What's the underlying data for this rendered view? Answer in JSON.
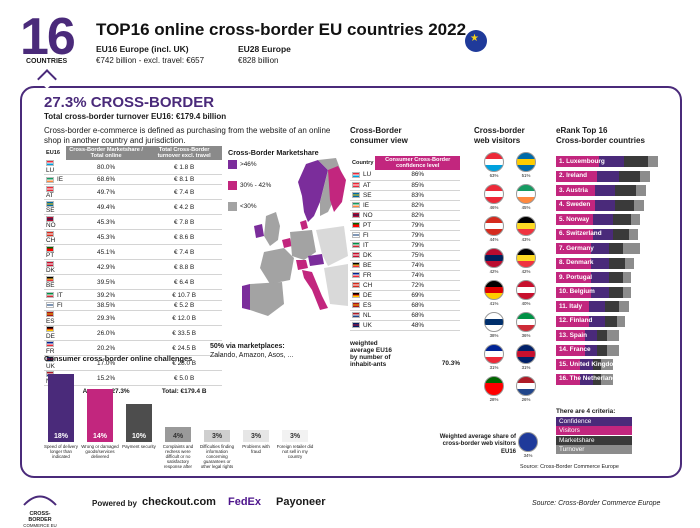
{
  "header": {
    "big_number": "16",
    "big_label": "COUNTRIES",
    "title": "TOP16 online cross-border EU countries 2022",
    "eu16_title": "EU16 Europe (incl. UK)",
    "eu16_value": "€742 billion - excl. travel: €657",
    "eu28_title": "EU28 Europe",
    "eu28_value": "€828 billion"
  },
  "crossborder": {
    "title": "27.3% CROSS-BORDER",
    "subtitle": "Total cross-border turnover EU16: €179.4 billion",
    "description": "Cross-border e-commerce is defined as purchasing from the website of an online shop in another country and jurisdiction."
  },
  "left_table": {
    "col0": "EU16",
    "col1": "Cross-Border Marketshare / Total online",
    "col2": "Total Cross-Border turnover excl. travel",
    "rows": [
      {
        "code": "LU",
        "share": "80.0%",
        "turnover": "€ 1.8 B"
      },
      {
        "code": "IE",
        "share": "68.6%",
        "turnover": "€ 8.1 B"
      },
      {
        "code": "AT",
        "share": "49.7%",
        "turnover": "€ 7.4 B"
      },
      {
        "code": "SE",
        "share": "49.4%",
        "turnover": "€ 4.2 B"
      },
      {
        "code": "NO",
        "share": "45.3%",
        "turnover": "€ 7.8 B"
      },
      {
        "code": "CH",
        "share": "45.3%",
        "turnover": "€ 8.6 B"
      },
      {
        "code": "PT",
        "share": "45.1%",
        "turnover": "€ 7.4 B"
      },
      {
        "code": "DK",
        "share": "42.9%",
        "turnover": "€ 8.8 B"
      },
      {
        "code": "BE",
        "share": "39.5%",
        "turnover": "€ 6.4 B"
      },
      {
        "code": "IT",
        "share": "39.2%",
        "turnover": "€ 10.7 B"
      },
      {
        "code": "FI",
        "share": "38.5%",
        "turnover": "€ 5.2 B"
      },
      {
        "code": "ES",
        "share": "29.3%",
        "turnover": "€ 12.0 B"
      },
      {
        "code": "DE",
        "share": "26.0%",
        "turnover": "€ 33.5 B"
      },
      {
        "code": "FR",
        "share": "20.2%",
        "turnover": "€ 24.5 B"
      },
      {
        "code": "UK",
        "share": "17.0%",
        "turnover": "€ 28.0 B"
      },
      {
        "code": "NL",
        "share": "15.2%",
        "turnover": "€ 5.0 B"
      }
    ],
    "footer_avg": "Average: 27.3%",
    "footer_total": "Total: €179.4 B"
  },
  "map_legend": {
    "title": "Cross-Border Marketshare",
    "items": [
      {
        "label": ">46%",
        "color": "#7b2d9b"
      },
      {
        "label": "30% - 42%",
        "color": "#c2267e"
      },
      {
        "label": "<30%",
        "color": "#a3a3a3"
      }
    ],
    "marketplace_line1": "50% via marketplaces:",
    "marketplace_line2": "Zalando, Amazon, Asos, ..."
  },
  "challenges": {
    "title": "Consumer cross-border online challenges",
    "items": [
      {
        "value": "18%",
        "pct": 18,
        "color": "#4a2a7a",
        "label": "Speed of delivery longer than indicated"
      },
      {
        "value": "14%",
        "pct": 14,
        "color": "#c2267e",
        "label": "Wrong or damaged goods/services delivered"
      },
      {
        "value": "10%",
        "pct": 10,
        "color": "#4d4d4d",
        "label": "Payment security"
      },
      {
        "value": "4%",
        "pct": 4,
        "color": "#9a9a9a",
        "label": "Complaints and redress were difficult or no satisfactory response after"
      },
      {
        "value": "3%",
        "pct": 3,
        "color": "#cfcfcf",
        "label": "Difficulties finding information concerning guarantees or other legal rights"
      },
      {
        "value": "3%",
        "pct": 3,
        "color": "#e6e6e6",
        "label": "Problems with fraud"
      },
      {
        "value": "3%",
        "pct": 3,
        "color": "#f2f2f2",
        "label": "Foreign retailer did not sell in my country"
      }
    ]
  },
  "consumer_view": {
    "title_line1": "Cross-Border",
    "title_line2": "consumer view",
    "col0": "Country",
    "col1": "Consumer Cross-Border confidence level",
    "rows": [
      {
        "code": "LU",
        "value": "86%"
      },
      {
        "code": "AT",
        "value": "85%"
      },
      {
        "code": "SE",
        "value": "83%"
      },
      {
        "code": "IE",
        "value": "82%"
      },
      {
        "code": "NO",
        "value": "82%"
      },
      {
        "code": "PT",
        "value": "79%"
      },
      {
        "code": "FI",
        "value": "79%"
      },
      {
        "code": "IT",
        "value": "79%"
      },
      {
        "code": "DK",
        "value": "75%"
      },
      {
        "code": "BE",
        "value": "74%"
      },
      {
        "code": "FR",
        "value": "74%"
      },
      {
        "code": "CH",
        "value": "72%"
      },
      {
        "code": "DE",
        "value": "69%"
      },
      {
        "code": "ES",
        "value": "68%"
      },
      {
        "code": "NL",
        "value": "68%"
      },
      {
        "code": "UK",
        "value": "48%"
      }
    ],
    "wavg_label": "weighted average EU16 by number of inhabit-ants",
    "wavg_value": "70.3%"
  },
  "web_visitors": {
    "title_line1": "Cross-border",
    "title_line2": "web visitors",
    "note": "Weighted average share of cross-border web visitors EU16",
    "avg_value": "34%",
    "flags": [
      {
        "code": "LU",
        "value": "63%",
        "colors": [
          "#ed2939",
          "#ffffff",
          "#00a1de"
        ]
      },
      {
        "code": "SE",
        "value": "51%",
        "colors": [
          "#006aa7",
          "#fecc00",
          "#006aa7"
        ]
      },
      {
        "code": "AT",
        "value": "46%",
        "colors": [
          "#ed2939",
          "#ffffff",
          "#ed2939"
        ]
      },
      {
        "code": "IE",
        "value": "45%",
        "colors": [
          "#169b62",
          "#ffffff",
          "#ff883e"
        ]
      },
      {
        "code": "CH",
        "value": "44%",
        "colors": [
          "#d52b1e",
          "#ffffff",
          "#d52b1e"
        ]
      },
      {
        "code": "BE",
        "value": "43%",
        "colors": [
          "#000000",
          "#fdda24",
          "#ef3340"
        ]
      },
      {
        "code": "NO",
        "value": "42%",
        "colors": [
          "#ba0c2f",
          "#00205b",
          "#ba0c2f"
        ]
      },
      {
        "code": "BE2",
        "value": "42%",
        "colors": [
          "#000000",
          "#fdda24",
          "#ef3340"
        ]
      },
      {
        "code": "DE",
        "value": "41%",
        "colors": [
          "#000000",
          "#dd0000",
          "#ffce00"
        ]
      },
      {
        "code": "DK",
        "value": "40%",
        "colors": [
          "#c8102e",
          "#ffffff",
          "#c8102e"
        ]
      },
      {
        "code": "FI",
        "value": "38%",
        "colors": [
          "#ffffff",
          "#002f6c",
          "#ffffff"
        ]
      },
      {
        "code": "IT",
        "value": "36%",
        "colors": [
          "#009246",
          "#ffffff",
          "#ce2b37"
        ]
      },
      {
        "code": "FR",
        "value": "31%",
        "colors": [
          "#002395",
          "#ffffff",
          "#ed2939"
        ]
      },
      {
        "code": "UK",
        "value": "31%",
        "colors": [
          "#012169",
          "#c8102e",
          "#012169"
        ]
      },
      {
        "code": "PT",
        "value": "28%",
        "colors": [
          "#006600",
          "#ff0000",
          "#ff0000"
        ]
      },
      {
        "code": "NL",
        "value": "26%",
        "colors": [
          "#ae1c28",
          "#ffffff",
          "#21468b"
        ]
      }
    ]
  },
  "erank": {
    "title_line1": "eRank Top 16",
    "title_line2": "Cross-border countries",
    "rows": [
      {
        "label": "1. Luxembourg",
        "segs": [
          0.42,
          0.25,
          0.23,
          0.1
        ]
      },
      {
        "label": "2. Ireland",
        "segs": [
          0.4,
          0.22,
          0.2,
          0.1
        ]
      },
      {
        "label": "3. Austria",
        "segs": [
          0.38,
          0.2,
          0.2,
          0.1
        ]
      },
      {
        "label": "4. Sweden",
        "segs": [
          0.38,
          0.2,
          0.18,
          0.1
        ]
      },
      {
        "label": "5. Norway",
        "segs": [
          0.36,
          0.2,
          0.18,
          0.08
        ]
      },
      {
        "label": "6. Switzerland",
        "segs": [
          0.36,
          0.2,
          0.16,
          0.08
        ]
      },
      {
        "label": "7. Germany",
        "segs": [
          0.34,
          0.18,
          0.14,
          0.16
        ]
      },
      {
        "label": "8. Denmark",
        "segs": [
          0.34,
          0.18,
          0.16,
          0.08
        ]
      },
      {
        "label": "9. Portugal",
        "segs": [
          0.34,
          0.18,
          0.14,
          0.08
        ]
      },
      {
        "label": "10. Belgium",
        "segs": [
          0.34,
          0.18,
          0.14,
          0.08
        ]
      },
      {
        "label": "11. Italy",
        "segs": [
          0.32,
          0.16,
          0.14,
          0.1
        ]
      },
      {
        "label": "12. Finland",
        "segs": [
          0.32,
          0.16,
          0.12,
          0.08
        ]
      },
      {
        "label": "13. Spain",
        "segs": [
          0.28,
          0.12,
          0.1,
          0.12
        ]
      },
      {
        "label": "14. France",
        "segs": [
          0.28,
          0.12,
          0.1,
          0.12
        ]
      },
      {
        "label": "15. United Kingdom",
        "segs": [
          0.24,
          0.12,
          0.08,
          0.12
        ]
      },
      {
        "label": "16. The Netherlands",
        "segs": [
          0.24,
          0.12,
          0.08,
          0.12
        ]
      }
    ],
    "criteria_title": "There are 4 criteria:",
    "criteria": [
      {
        "label": "Confidence",
        "color": "#4a2a7a"
      },
      {
        "label": "Visitors",
        "color": "#c2267e"
      },
      {
        "label": "Marketshare",
        "color": "#3a3a3a"
      },
      {
        "label": "Turnover",
        "color": "#8c8c8c"
      }
    ],
    "source": "Source: Cross-Border Commerce Europe"
  },
  "footer": {
    "logo_line1": "CROSS-BORDER",
    "logo_line2": "COMMERCE EU",
    "powered_by": "Powered by",
    "sponsor1": "checkout.com",
    "sponsor2": "FedEx",
    "sponsor3": "Payoneer",
    "source": "Source: Cross-Border Commerce Europe"
  },
  "colors": {
    "purple": "#4a2a7a",
    "magenta": "#c2267e",
    "dark": "#3a3a3a",
    "grey": "#8c8c8c"
  }
}
